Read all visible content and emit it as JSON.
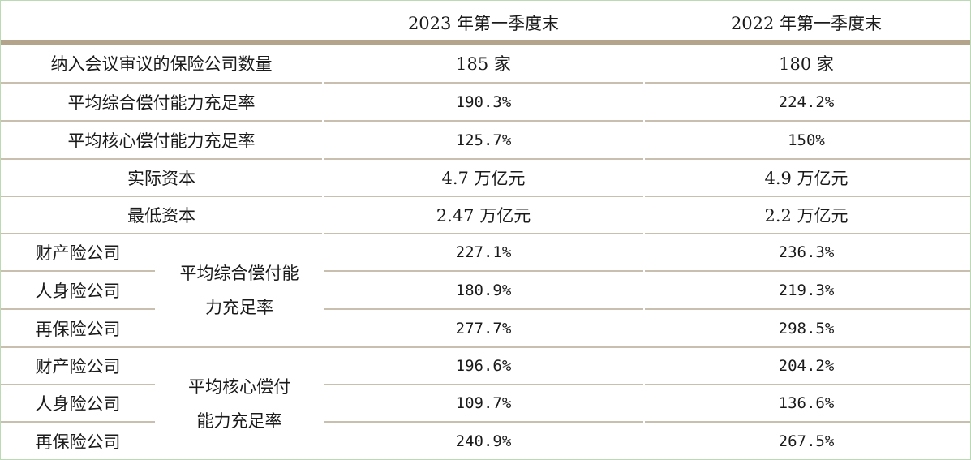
{
  "table": {
    "headers": [
      "",
      "2023 年第一季度末",
      "2022 年第一季度末"
    ],
    "rows": [
      {
        "label": "纳入会议审议的保险公司数量",
        "v2023": "185 家",
        "v2022": "180 家"
      },
      {
        "label": "平均综合偿付能力充足率",
        "v2023": "190.3%",
        "v2022": "224.2%"
      },
      {
        "label": "平均核心偿付能力充足率",
        "v2023": "125.7%",
        "v2022": "150%"
      },
      {
        "label": "实际资本",
        "v2023": "4.7 万亿元",
        "v2022": "4.9 万亿元"
      },
      {
        "label": "最低资本",
        "v2023": "2.47 万亿元",
        "v2022": "2.2 万亿元"
      }
    ],
    "groups": [
      {
        "title_line1": "平均综合偿付能",
        "title_line2": "力充足率",
        "rows": [
          {
            "label": "财产险公司",
            "v2023": "227.1%",
            "v2022": "236.3%"
          },
          {
            "label": "人身险公司",
            "v2023": "180.9%",
            "v2022": "219.3%"
          },
          {
            "label": "再保险公司",
            "v2023": "277.7%",
            "v2022": "298.5%"
          }
        ]
      },
      {
        "title_line1": "平均核心偿付",
        "title_line2": "能力充足率",
        "rows": [
          {
            "label": "财产险公司",
            "v2023": "196.6%",
            "v2022": "204.2%"
          },
          {
            "label": "人身险公司",
            "v2023": "109.7%",
            "v2022": "136.6%"
          },
          {
            "label": "再保险公司",
            "v2023": "240.9%",
            "v2022": "267.5%"
          }
        ]
      }
    ]
  },
  "colors": {
    "header_rule": "#b3a48b",
    "row_rule": "#c9bfae",
    "frame": "#bcd9b5"
  }
}
